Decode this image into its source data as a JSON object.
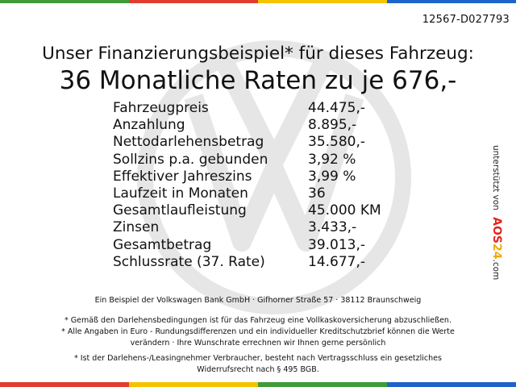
{
  "ref_code": "12567-D027793",
  "headline": "Unser Finanzierungsbeispiel* für dieses Fahrzeug:",
  "rate_headline": "36 Monatliche Raten zu je 676,-",
  "specs": [
    {
      "label": "Fahrzeugpreis",
      "value": "44.475,-"
    },
    {
      "label": "Anzahlung",
      "value": "8.895,-"
    },
    {
      "label": "Nettodarlehensbetrag",
      "value": "35.580,-"
    },
    {
      "label": "Sollzins p.a. gebunden",
      "value": "3,92 %"
    },
    {
      "label": "Effektiver Jahreszins",
      "value": "3,99 %"
    },
    {
      "label": "Laufzeit in Monaten",
      "value": "36"
    },
    {
      "label": "Gesamtlaufleistung",
      "value": "45.000 KM"
    },
    {
      "label": "Zinsen",
      "value": "3.433,-"
    },
    {
      "label": "Gesamtbetrag",
      "value": "39.013,-"
    },
    {
      "label": "Schlussrate (37. Rate)",
      "value": "14.677,-"
    }
  ],
  "sidebar": {
    "prefix": "unterstützt von",
    "brand_a": "AOS",
    "brand_b": "24",
    "suffix": ".com"
  },
  "lender_line": "Ein Beispiel der Volkswagen Bank GmbH · Gifhorner Straße 57 · 38112 Braunschweig",
  "footnotes": {
    "f1": "* Gemäß den Darlehensbedingungen ist für das Fahrzeug eine Vollkaskoversicherung abzuschließen.",
    "f2_line1": "* Alle Angaben in Euro - Rundungsdifferenzen und ein individueller Kreditschutzbrief können die Werte",
    "f2_line2": "verändern · Ihre Wunschrate errechnen wir Ihnen gerne persönlich",
    "f3_line1": "* Ist der Darlehens-/Leasingnehmer Verbraucher, besteht nach Vertragsschluss ein gesetzliches",
    "f3_line2": "Widerrufsrecht nach § 495 BGB."
  },
  "colors": {
    "top_bar": [
      "#3f9a3a",
      "#e03c31",
      "#f4c400",
      "#1e64c8"
    ],
    "bottom_bar": [
      "#e03c31",
      "#f4c400",
      "#3f9a3a",
      "#1e64c8"
    ],
    "watermark": "#e6e6e6",
    "brand_red": "#e2231a",
    "brand_yellow": "#f2a900"
  },
  "icons": {
    "watermark": "vw-logo-icon"
  }
}
